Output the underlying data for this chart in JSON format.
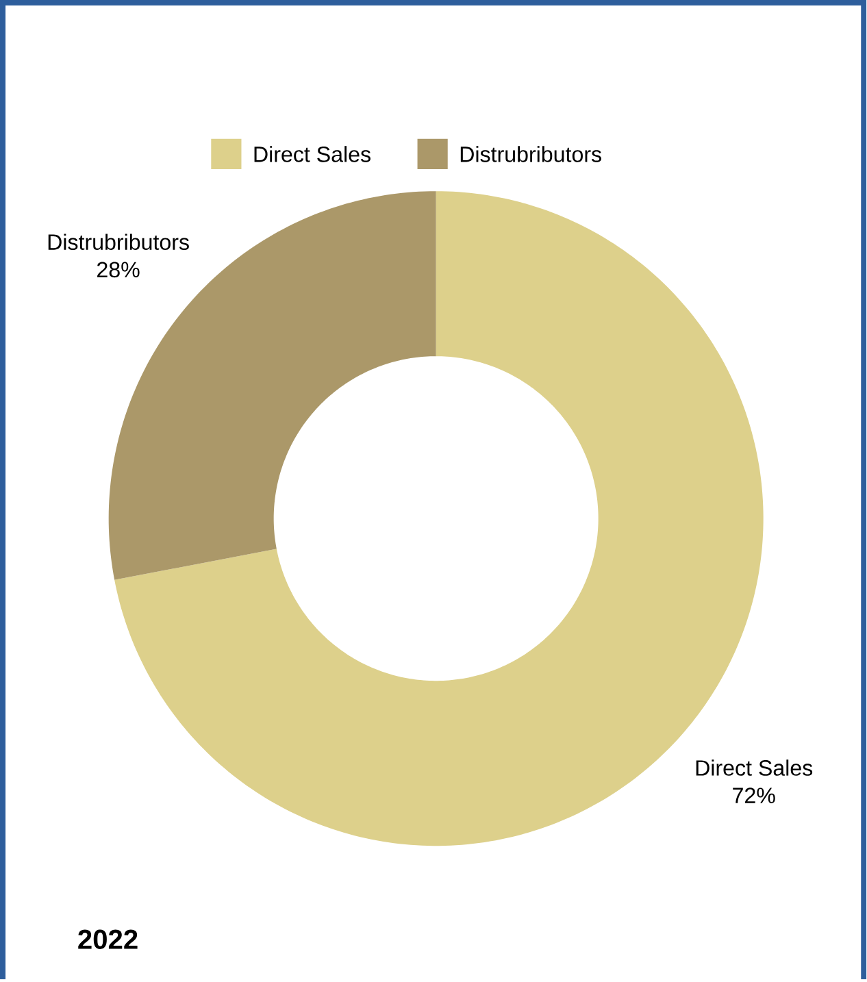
{
  "chart_data": {
    "type": "donut",
    "title": "2022",
    "categories": [
      "Direct Sales",
      "Distrubributors"
    ],
    "values": [
      72,
      28
    ],
    "value_labels": [
      "72%",
      "28%"
    ],
    "colors": [
      "#ddd08b",
      "#ab9869"
    ],
    "legend": "top"
  }
}
